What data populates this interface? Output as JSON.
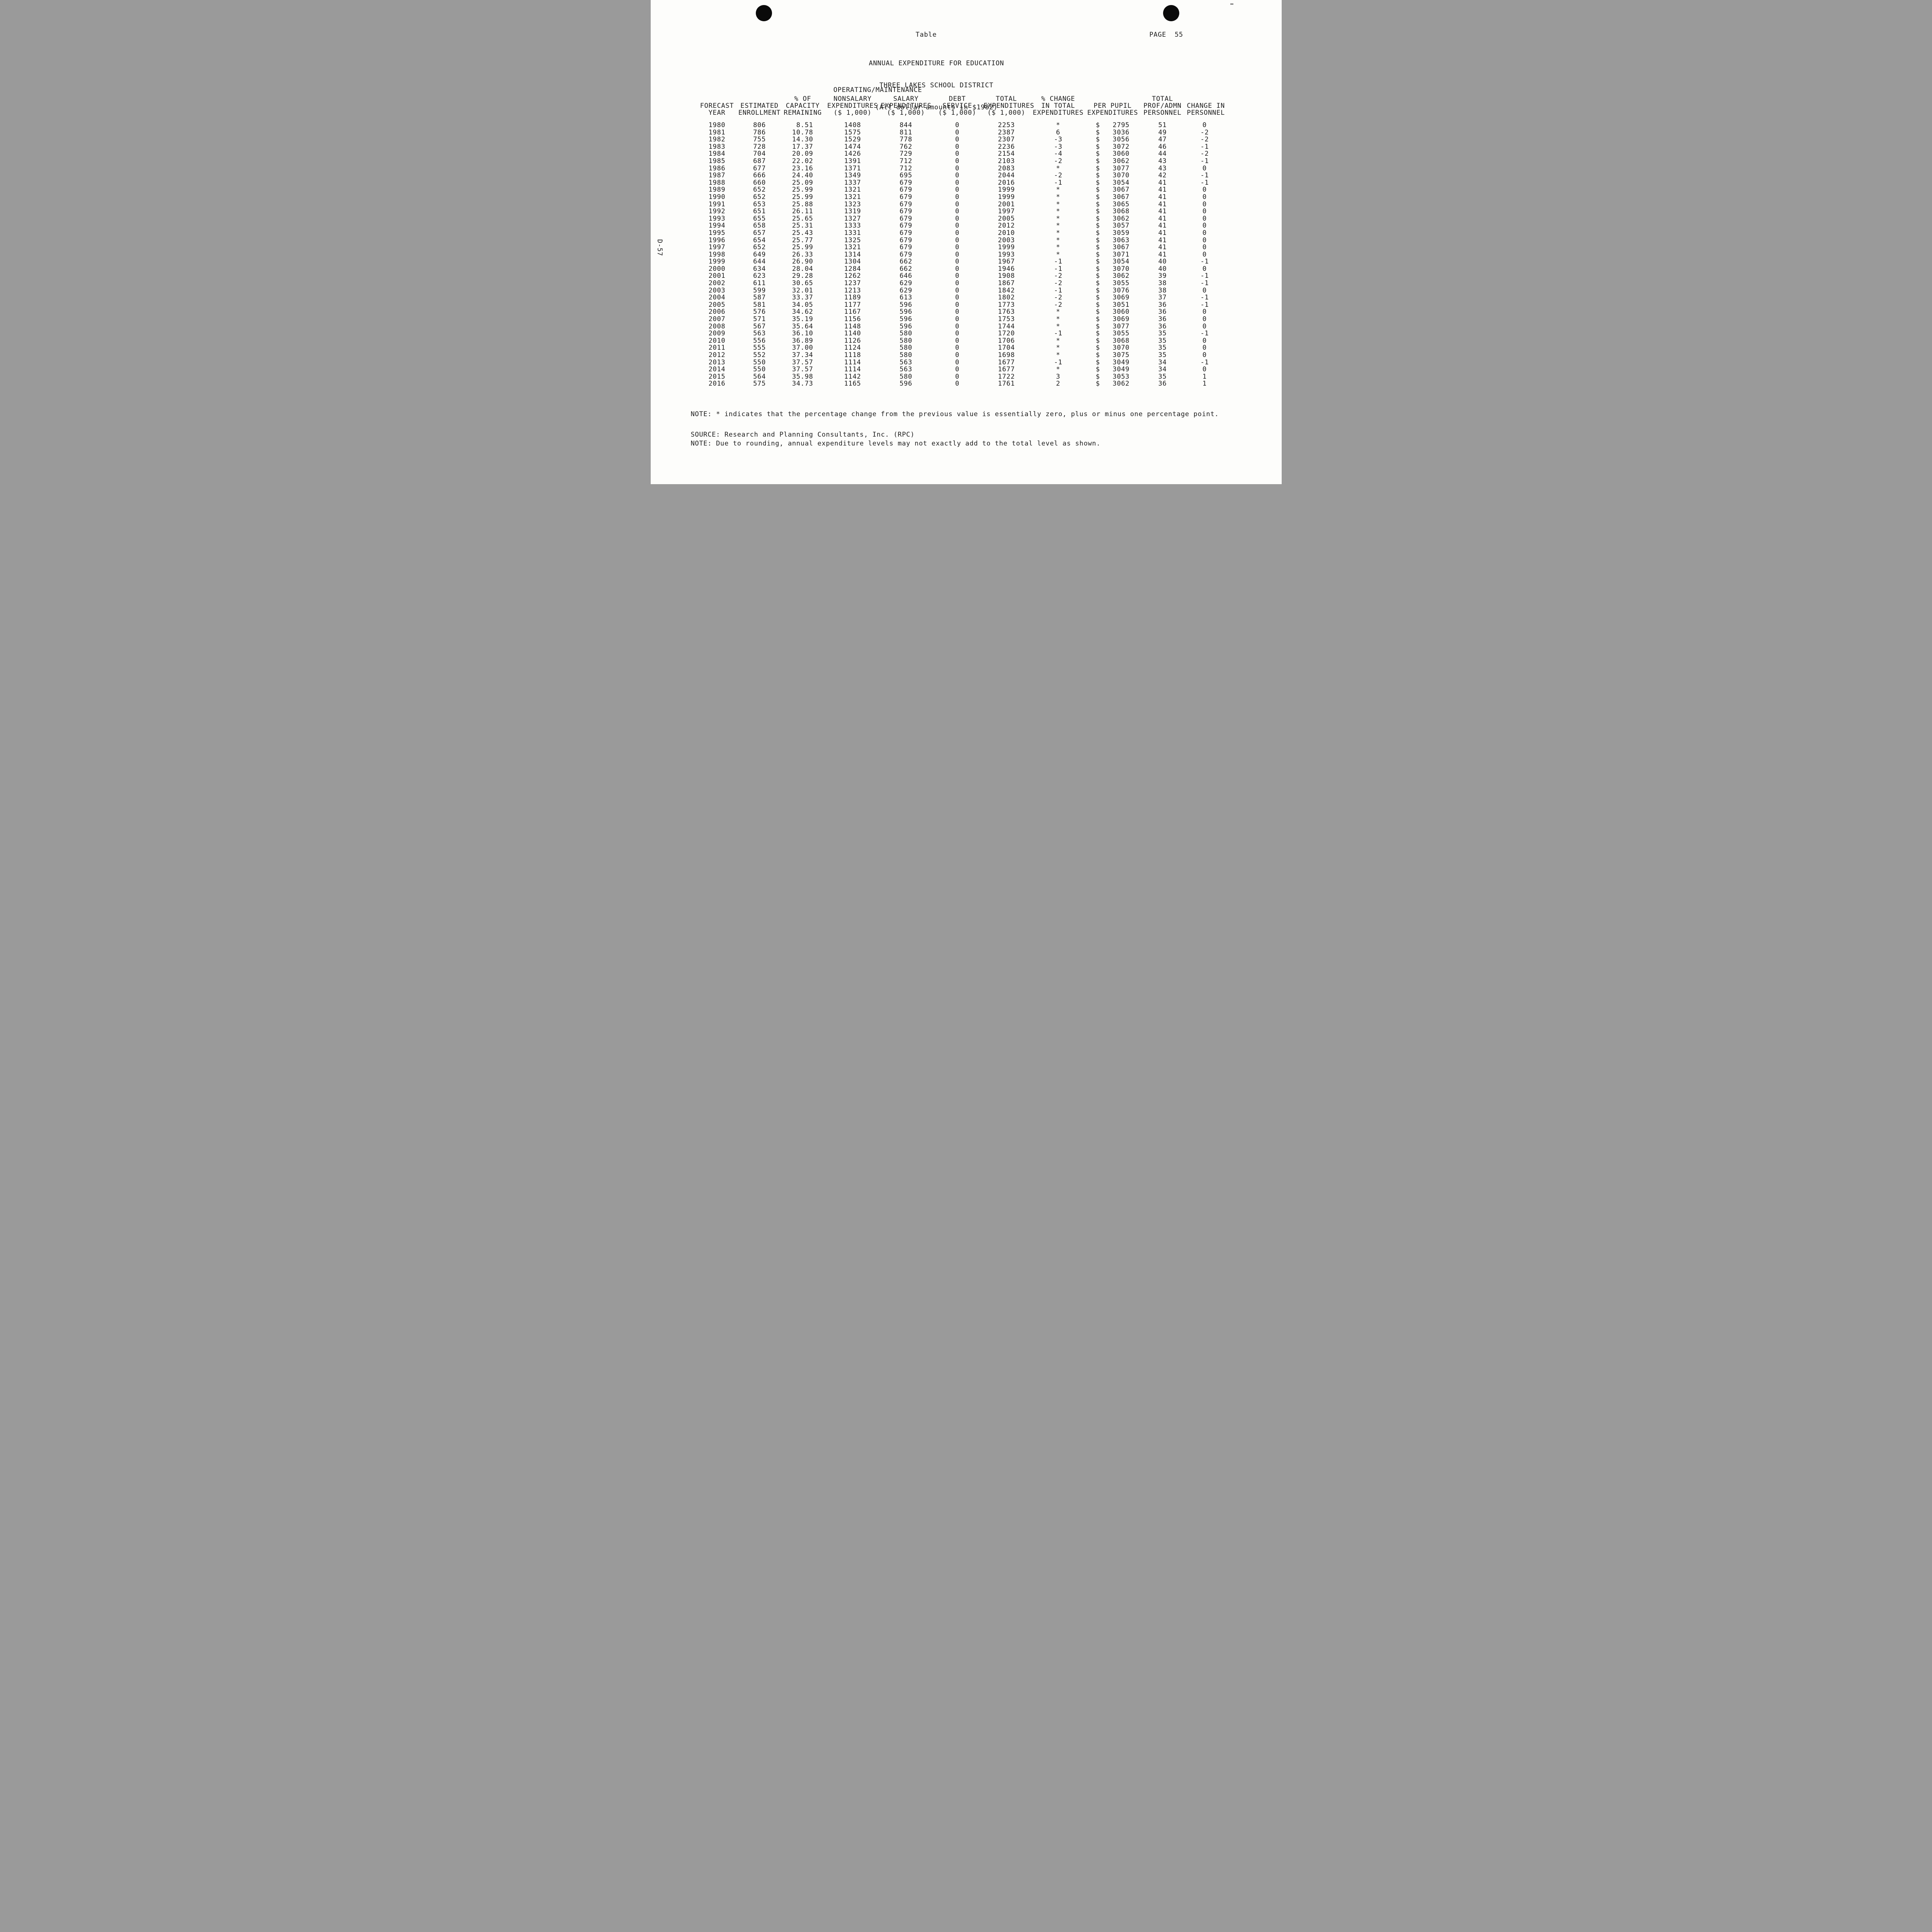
{
  "page": {
    "corner_label": "Table",
    "page_number": "PAGE  55",
    "side_label": "D-57"
  },
  "title": {
    "line1": "ANNUAL EXPENDITURE FOR EDUCATION",
    "line2": "THREE LAKES SCHOOL DISTRICT",
    "line3": "(All dollar amounts in $1982)"
  },
  "table": {
    "group_header": "OPERATING/MAINTENANCE",
    "header_line2": [
      "",
      "",
      "% OF",
      "NONSALARY",
      "SALARY",
      "DEBT",
      "TOTAL",
      "% CHANGE",
      "",
      "TOTAL",
      ""
    ],
    "header_line3": [
      "FORECAST",
      "ESTIMATED",
      "CAPACITY",
      "EXPENDITURES",
      "EXPENDITURES",
      "SERVICE",
      "EXPENDITURES",
      "IN TOTAL",
      "PER PUPIL",
      "PROF/ADMN",
      "CHANGE IN"
    ],
    "header_line4": [
      "YEAR",
      "ENROLLMENT",
      "REMAINING",
      "($ 1,000)",
      "($ 1,000)",
      "($ 1,000)",
      "($ 1,000)",
      "EXPENDITURES",
      "EXPENDITURES",
      "PERSONNEL",
      "PERSONNEL"
    ],
    "dollar_sign": "$",
    "rows": [
      [
        "1980",
        "806",
        "8.51",
        "1408",
        "844",
        "0",
        "2253",
        "*",
        "2795",
        "51",
        "0"
      ],
      [
        "1981",
        "786",
        "10.78",
        "1575",
        "811",
        "0",
        "2387",
        "6",
        "3036",
        "49",
        "-2"
      ],
      [
        "1982",
        "755",
        "14.30",
        "1529",
        "778",
        "0",
        "2307",
        "-3",
        "3056",
        "47",
        "-2"
      ],
      [
        "1983",
        "728",
        "17.37",
        "1474",
        "762",
        "0",
        "2236",
        "-3",
        "3072",
        "46",
        "-1"
      ],
      [
        "1984",
        "704",
        "20.09",
        "1426",
        "729",
        "0",
        "2154",
        "-4",
        "3060",
        "44",
        "-2"
      ],
      [
        "1985",
        "687",
        "22.02",
        "1391",
        "712",
        "0",
        "2103",
        "-2",
        "3062",
        "43",
        "-1"
      ],
      [
        "1986",
        "677",
        "23.16",
        "1371",
        "712",
        "0",
        "2083",
        "*",
        "3077",
        "43",
        "0"
      ],
      [
        "1987",
        "666",
        "24.40",
        "1349",
        "695",
        "0",
        "2044",
        "-2",
        "3070",
        "42",
        "-1"
      ],
      [
        "1988",
        "660",
        "25.09",
        "1337",
        "679",
        "0",
        "2016",
        "-1",
        "3054",
        "41",
        "-1"
      ],
      [
        "1989",
        "652",
        "25.99",
        "1321",
        "679",
        "0",
        "1999",
        "*",
        "3067",
        "41",
        "0"
      ],
      [
        "1990",
        "652",
        "25.99",
        "1321",
        "679",
        "0",
        "1999",
        "*",
        "3067",
        "41",
        "0"
      ],
      [
        "1991",
        "653",
        "25.88",
        "1323",
        "679",
        "0",
        "2001",
        "*",
        "3065",
        "41",
        "0"
      ],
      [
        "1992",
        "651",
        "26.11",
        "1319",
        "679",
        "0",
        "1997",
        "*",
        "3068",
        "41",
        "0"
      ],
      [
        "1993",
        "655",
        "25.65",
        "1327",
        "679",
        "0",
        "2005",
        "*",
        "3062",
        "41",
        "0"
      ],
      [
        "1994",
        "658",
        "25.31",
        "1333",
        "679",
        "0",
        "2012",
        "*",
        "3057",
        "41",
        "0"
      ],
      [
        "1995",
        "657",
        "25.43",
        "1331",
        "679",
        "0",
        "2010",
        "*",
        "3059",
        "41",
        "0"
      ],
      [
        "1996",
        "654",
        "25.77",
        "1325",
        "679",
        "0",
        "2003",
        "*",
        "3063",
        "41",
        "0"
      ],
      [
        "1997",
        "652",
        "25.99",
        "1321",
        "679",
        "0",
        "1999",
        "*",
        "3067",
        "41",
        "0"
      ],
      [
        "1998",
        "649",
        "26.33",
        "1314",
        "679",
        "0",
        "1993",
        "*",
        "3071",
        "41",
        "0"
      ],
      [
        "1999",
        "644",
        "26.90",
        "1304",
        "662",
        "0",
        "1967",
        "-1",
        "3054",
        "40",
        "-1"
      ],
      [
        "2000",
        "634",
        "28.04",
        "1284",
        "662",
        "0",
        "1946",
        "-1",
        "3070",
        "40",
        "0"
      ],
      [
        "2001",
        "623",
        "29.28",
        "1262",
        "646",
        "0",
        "1908",
        "-2",
        "3062",
        "39",
        "-1"
      ],
      [
        "2002",
        "611",
        "30.65",
        "1237",
        "629",
        "0",
        "1867",
        "-2",
        "3055",
        "38",
        "-1"
      ],
      [
        "2003",
        "599",
        "32.01",
        "1213",
        "629",
        "0",
        "1842",
        "-1",
        "3076",
        "38",
        "0"
      ],
      [
        "2004",
        "587",
        "33.37",
        "1189",
        "613",
        "0",
        "1802",
        "-2",
        "3069",
        "37",
        "-1"
      ],
      [
        "2005",
        "581",
        "34.05",
        "1177",
        "596",
        "0",
        "1773",
        "-2",
        "3051",
        "36",
        "-1"
      ],
      [
        "2006",
        "576",
        "34.62",
        "1167",
        "596",
        "0",
        "1763",
        "*",
        "3060",
        "36",
        "0"
      ],
      [
        "2007",
        "571",
        "35.19",
        "1156",
        "596",
        "0",
        "1753",
        "*",
        "3069",
        "36",
        "0"
      ],
      [
        "2008",
        "567",
        "35.64",
        "1148",
        "596",
        "0",
        "1744",
        "*",
        "3077",
        "36",
        "0"
      ],
      [
        "2009",
        "563",
        "36.10",
        "1140",
        "580",
        "0",
        "1720",
        "-1",
        "3055",
        "35",
        "-1"
      ],
      [
        "2010",
        "556",
        "36.89",
        "1126",
        "580",
        "0",
        "1706",
        "*",
        "3068",
        "35",
        "0"
      ],
      [
        "2011",
        "555",
        "37.00",
        "1124",
        "580",
        "0",
        "1704",
        "*",
        "3070",
        "35",
        "0"
      ],
      [
        "2012",
        "552",
        "37.34",
        "1118",
        "580",
        "0",
        "1698",
        "*",
        "3075",
        "35",
        "0"
      ],
      [
        "2013",
        "550",
        "37.57",
        "1114",
        "563",
        "0",
        "1677",
        "-1",
        "3049",
        "34",
        "-1"
      ],
      [
        "2014",
        "550",
        "37.57",
        "1114",
        "563",
        "0",
        "1677",
        "*",
        "3049",
        "34",
        "0"
      ],
      [
        "2015",
        "564",
        "35.98",
        "1142",
        "580",
        "0",
        "1722",
        "3",
        "3053",
        "35",
        "1"
      ],
      [
        "2016",
        "575",
        "34.73",
        "1165",
        "596",
        "0",
        "1761",
        "2",
        "3062",
        "36",
        "1"
      ]
    ]
  },
  "notes": [
    "NOTE: * indicates that the percentage change from the previous value is essentially zero, plus or minus one percentage point.",
    "NOTE: Due to rounding, annual expenditure levels may not exactly add to the total level as shown."
  ],
  "source": "SOURCE: Research and Planning Consultants, Inc. (RPC)"
}
